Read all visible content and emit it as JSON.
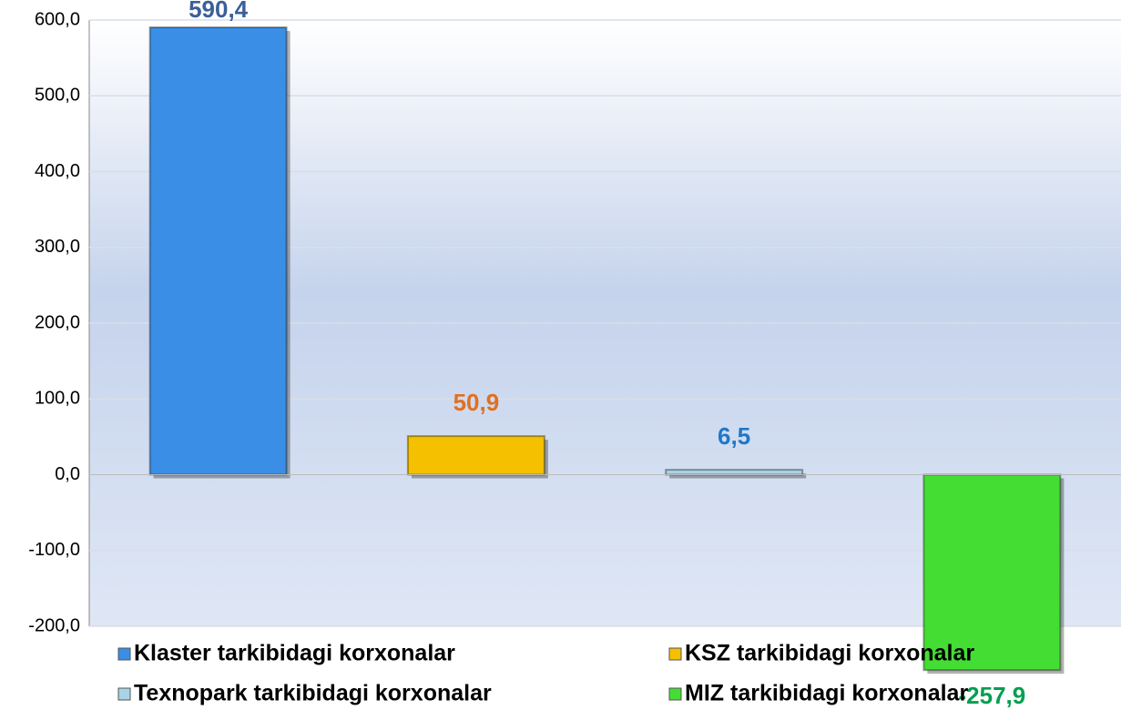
{
  "chart_data": {
    "type": "bar",
    "categories": [
      "Klaster tarkibidagi korxonalar",
      "KSZ tarkibidagi korxonalar",
      "Texnopark tarkibidagi korxonalar",
      "MIZ tarkibidagi korxonalar"
    ],
    "values": [
      590.4,
      50.9,
      6.5,
      -257.9
    ],
    "value_labels": [
      "590,4",
      "50,9",
      "6,5",
      "-257,9"
    ],
    "colors": [
      "#3a8ee6",
      "#f5c000",
      "#a8d4e6",
      "#44dd33"
    ],
    "label_colors": [
      "#3a5f9a",
      "#e07020",
      "#1f77c8",
      "#00a050"
    ],
    "ylim": [
      -200,
      600
    ],
    "yticks": [
      {
        "value": -200,
        "label": "-200,0"
      },
      {
        "value": -100,
        "label": "-100,0"
      },
      {
        "value": 0,
        "label": "0,0"
      },
      {
        "value": 100,
        "label": "100,0"
      },
      {
        "value": 200,
        "label": "200,0"
      },
      {
        "value": 300,
        "label": "300,0"
      },
      {
        "value": 400,
        "label": "400,0"
      },
      {
        "value": 500,
        "label": "500,0"
      },
      {
        "value": 600,
        "label": "600,0"
      }
    ],
    "grid": true,
    "legend": "bottom"
  }
}
